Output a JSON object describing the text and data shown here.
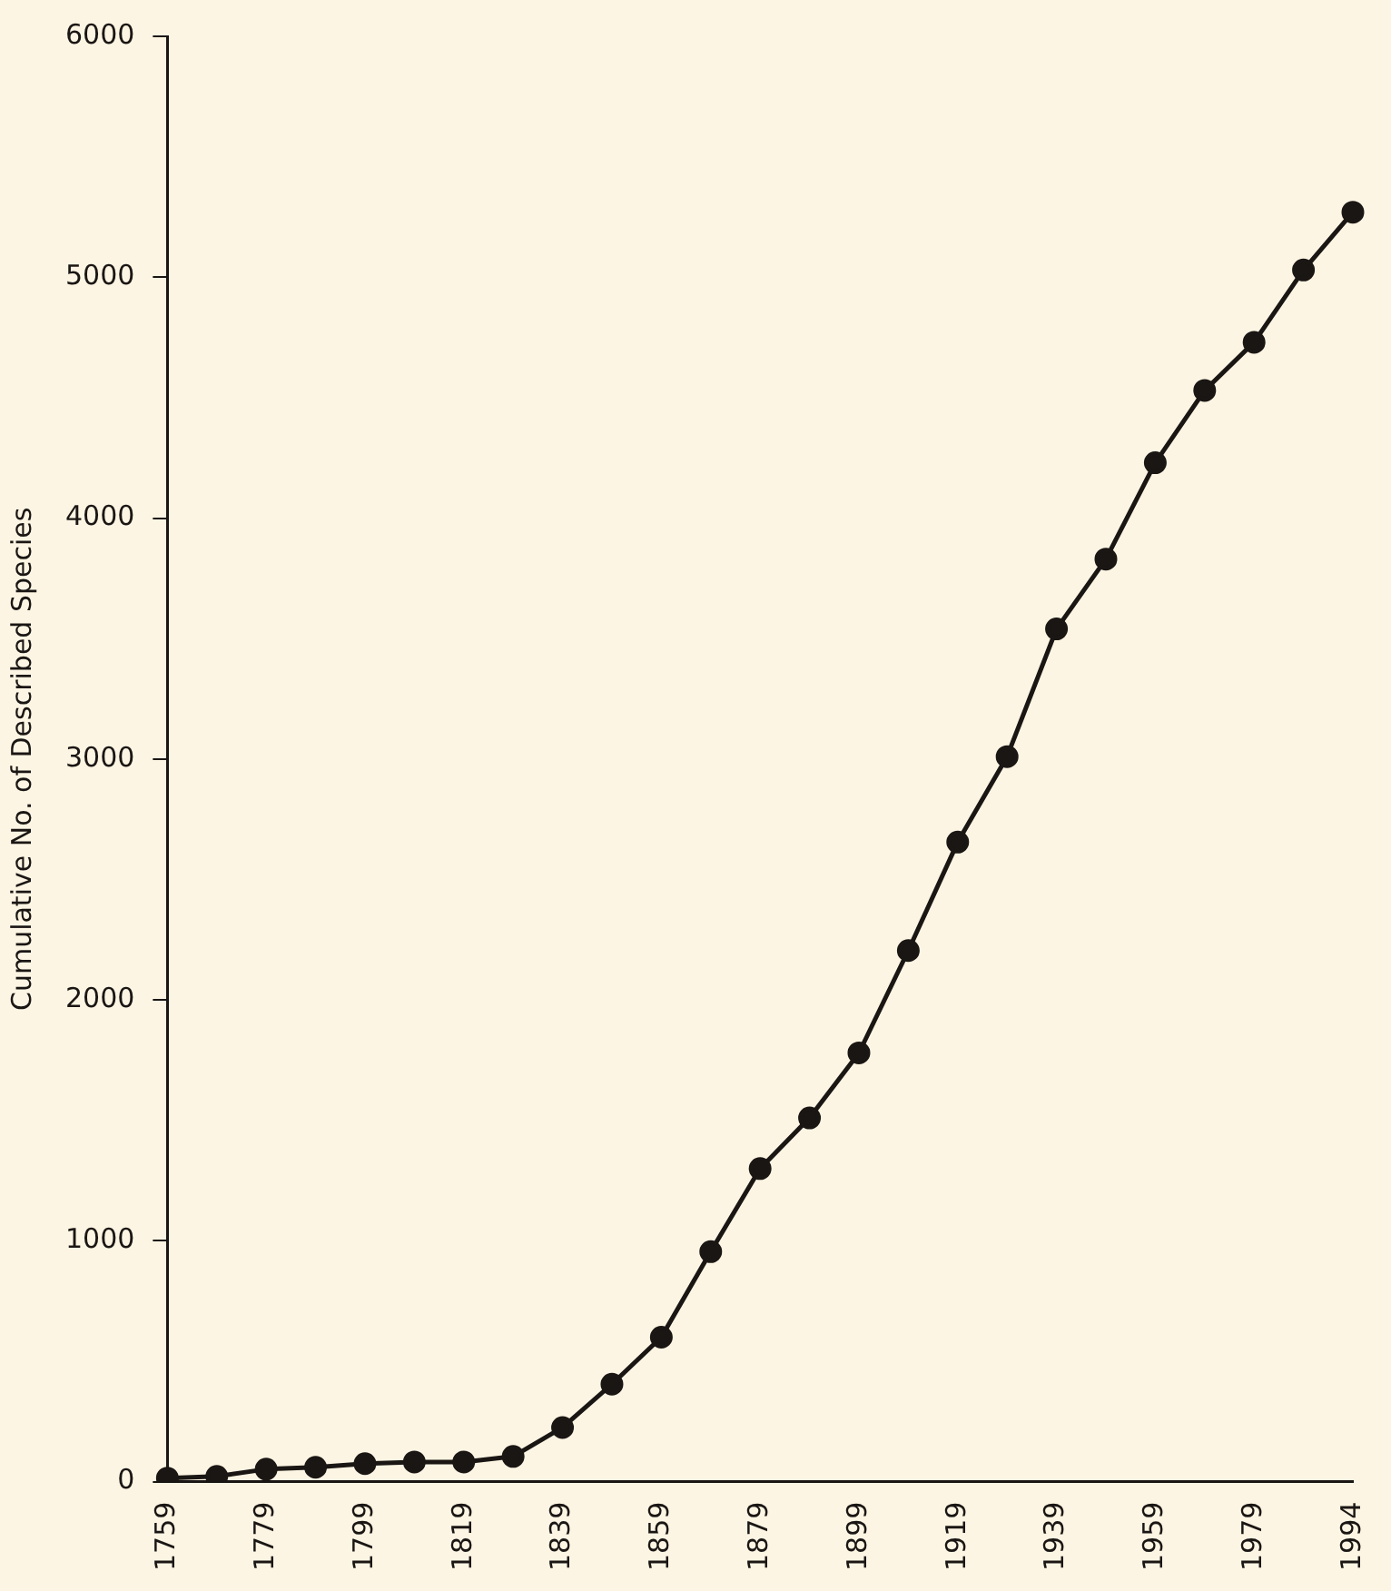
{
  "chart_data": {
    "type": "line",
    "ylabel": "Cumulative No. of Described Species",
    "categories": [
      "1759",
      null,
      "1779",
      null,
      "1799",
      null,
      "1819",
      null,
      "1839",
      null,
      "1859",
      null,
      "1879",
      null,
      "1899",
      null,
      "1919",
      null,
      "1939",
      null,
      "1959",
      null,
      "1979",
      null,
      "1994"
    ],
    "series": [
      {
        "color": "#1a1614",
        "values": [
          15,
          22,
          52,
          60,
          75,
          82,
          82,
          105,
          225,
          405,
          600,
          955,
          1300,
          1510,
          1780,
          2205,
          2655,
          3010,
          3540,
          3830,
          4230,
          4530,
          4730,
          5030,
          5270
        ]
      }
    ],
    "ylim": [
      0,
      6000
    ],
    "yticks": [
      0,
      1000,
      2000,
      3000,
      4000,
      5000,
      6000
    ],
    "grid": false,
    "legend": false,
    "marker": "circle",
    "line_style": "solid"
  }
}
